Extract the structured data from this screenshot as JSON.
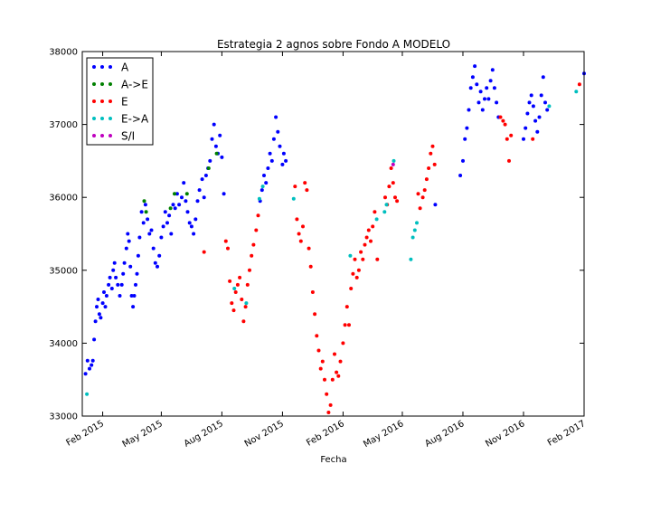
{
  "chart_data": {
    "type": "scatter",
    "title": "Estrategia 2 agnos sobre Fondo A MODELO",
    "xlabel": "Fecha",
    "ylabel": "",
    "xlim": [
      "2015-01-01",
      "2017-02-01"
    ],
    "ylim": [
      33000,
      38000
    ],
    "yticks": [
      33000,
      34000,
      35000,
      36000,
      37000,
      38000
    ],
    "xticks": [
      {
        "date": "2015-02-01",
        "label": "Feb 2015"
      },
      {
        "date": "2015-05-01",
        "label": "May 2015"
      },
      {
        "date": "2015-08-01",
        "label": "Aug 2015"
      },
      {
        "date": "2015-11-01",
        "label": "Nov 2015"
      },
      {
        "date": "2016-02-01",
        "label": "Feb 2016"
      },
      {
        "date": "2016-05-01",
        "label": "May 2016"
      },
      {
        "date": "2016-08-01",
        "label": "Aug 2016"
      },
      {
        "date": "2016-11-01",
        "label": "Nov 2016"
      },
      {
        "date": "2017-02-01",
        "label": "Feb 2017"
      }
    ],
    "grid": false,
    "legend_position": "top-left",
    "series": [
      {
        "name": "A",
        "color": "#0000ff",
        "points": [
          [
            "2015-01-06",
            33580
          ],
          [
            "2015-01-09",
            33760
          ],
          [
            "2015-01-12",
            33650
          ],
          [
            "2015-01-15",
            33700
          ],
          [
            "2015-01-17",
            33760
          ],
          [
            "2015-01-19",
            34050
          ],
          [
            "2015-01-21",
            34300
          ],
          [
            "2015-01-23",
            34500
          ],
          [
            "2015-01-25",
            34600
          ],
          [
            "2015-01-27",
            34400
          ],
          [
            "2015-01-29",
            34350
          ],
          [
            "2015-02-01",
            34550
          ],
          [
            "2015-02-03",
            34700
          ],
          [
            "2015-02-05",
            34500
          ],
          [
            "2015-02-07",
            34650
          ],
          [
            "2015-02-10",
            34800
          ],
          [
            "2015-02-12",
            34900
          ],
          [
            "2015-02-15",
            34750
          ],
          [
            "2015-02-17",
            35000
          ],
          [
            "2015-02-19",
            35100
          ],
          [
            "2015-02-21",
            34900
          ],
          [
            "2015-02-24",
            34800
          ],
          [
            "2015-02-27",
            34650
          ],
          [
            "2015-03-02",
            34800
          ],
          [
            "2015-03-04",
            34950
          ],
          [
            "2015-03-06",
            35100
          ],
          [
            "2015-03-09",
            35300
          ],
          [
            "2015-03-11",
            35500
          ],
          [
            "2015-03-13",
            35400
          ],
          [
            "2015-03-15",
            35050
          ],
          [
            "2015-03-17",
            34650
          ],
          [
            "2015-03-19",
            34500
          ],
          [
            "2015-03-21",
            34650
          ],
          [
            "2015-03-23",
            34800
          ],
          [
            "2015-03-25",
            34950
          ],
          [
            "2015-03-27",
            35200
          ],
          [
            "2015-03-29",
            35450
          ],
          [
            "2015-04-01",
            35800
          ],
          [
            "2015-04-04",
            35650
          ],
          [
            "2015-04-07",
            35900
          ],
          [
            "2015-04-10",
            35700
          ],
          [
            "2015-04-13",
            35500
          ],
          [
            "2015-04-16",
            35550
          ],
          [
            "2015-04-19",
            35300
          ],
          [
            "2015-04-22",
            35100
          ],
          [
            "2015-04-25",
            35050
          ],
          [
            "2015-04-28",
            35200
          ],
          [
            "2015-05-01",
            35450
          ],
          [
            "2015-05-04",
            35600
          ],
          [
            "2015-05-07",
            35800
          ],
          [
            "2015-05-10",
            35650
          ],
          [
            "2015-05-13",
            35750
          ],
          [
            "2015-05-16",
            35500
          ],
          [
            "2015-05-19",
            35900
          ],
          [
            "2015-05-22",
            35850
          ],
          [
            "2015-05-25",
            36050
          ],
          [
            "2015-05-28",
            35900
          ],
          [
            "2015-06-01",
            36000
          ],
          [
            "2015-06-04",
            36200
          ],
          [
            "2015-06-07",
            35950
          ],
          [
            "2015-06-10",
            35800
          ],
          [
            "2015-06-13",
            35650
          ],
          [
            "2015-06-16",
            35600
          ],
          [
            "2015-06-19",
            35500
          ],
          [
            "2015-06-22",
            35700
          ],
          [
            "2015-06-25",
            35950
          ],
          [
            "2015-06-28",
            36100
          ],
          [
            "2015-07-02",
            36250
          ],
          [
            "2015-07-05",
            36000
          ],
          [
            "2015-07-08",
            36300
          ],
          [
            "2015-07-11",
            36400
          ],
          [
            "2015-07-14",
            36500
          ],
          [
            "2015-07-17",
            36800
          ],
          [
            "2015-07-20",
            37000
          ],
          [
            "2015-07-23",
            36700
          ],
          [
            "2015-07-26",
            36600
          ],
          [
            "2015-07-29",
            36850
          ],
          [
            "2015-08-01",
            36550
          ],
          [
            "2015-08-04",
            36050
          ],
          [
            "2015-09-28",
            35950
          ],
          [
            "2015-10-01",
            36100
          ],
          [
            "2015-10-04",
            36300
          ],
          [
            "2015-10-07",
            36200
          ],
          [
            "2015-10-10",
            36400
          ],
          [
            "2015-10-13",
            36600
          ],
          [
            "2015-10-16",
            36500
          ],
          [
            "2015-10-19",
            36800
          ],
          [
            "2015-10-22",
            37100
          ],
          [
            "2015-10-25",
            36900
          ],
          [
            "2015-10-28",
            36700
          ],
          [
            "2015-11-01",
            36450
          ],
          [
            "2015-11-03",
            36600
          ],
          [
            "2015-11-06",
            36500
          ],
          [
            "2016-06-20",
            35900
          ],
          [
            "2016-07-28",
            36300
          ],
          [
            "2016-08-01",
            36500
          ],
          [
            "2016-08-04",
            36800
          ],
          [
            "2016-08-07",
            36950
          ],
          [
            "2016-08-10",
            37200
          ],
          [
            "2016-08-13",
            37500
          ],
          [
            "2016-08-16",
            37650
          ],
          [
            "2016-08-19",
            37800
          ],
          [
            "2016-08-22",
            37550
          ],
          [
            "2016-08-25",
            37300
          ],
          [
            "2016-08-28",
            37450
          ],
          [
            "2016-08-31",
            37200
          ],
          [
            "2016-09-03",
            37350
          ],
          [
            "2016-09-06",
            37500
          ],
          [
            "2016-09-09",
            37350
          ],
          [
            "2016-09-12",
            37600
          ],
          [
            "2016-09-15",
            37750
          ],
          [
            "2016-09-18",
            37500
          ],
          [
            "2016-09-21",
            37300
          ],
          [
            "2016-09-24",
            37100
          ],
          [
            "2016-11-01",
            36800
          ],
          [
            "2016-11-04",
            36950
          ],
          [
            "2016-11-07",
            37150
          ],
          [
            "2016-11-10",
            37300
          ],
          [
            "2016-11-13",
            37400
          ],
          [
            "2016-11-16",
            37250
          ],
          [
            "2016-11-19",
            37050
          ],
          [
            "2016-11-22",
            36900
          ],
          [
            "2016-11-25",
            37100
          ],
          [
            "2016-11-28",
            37400
          ],
          [
            "2016-12-01",
            37650
          ],
          [
            "2016-12-04",
            37300
          ],
          [
            "2016-12-07",
            37200
          ],
          [
            "2017-02-01",
            37700
          ]
        ]
      },
      {
        "name": "A->E",
        "color": "#008000",
        "points": [
          [
            "2015-04-05",
            35950
          ],
          [
            "2015-04-08",
            35800
          ],
          [
            "2015-05-15",
            35850
          ],
          [
            "2015-05-21",
            36050
          ],
          [
            "2015-06-09",
            36050
          ],
          [
            "2015-07-12",
            36400
          ],
          [
            "2015-07-24",
            36600
          ]
        ]
      },
      {
        "name": "E",
        "color": "#ff0000",
        "points": [
          [
            "2015-07-05",
            35250
          ],
          [
            "2015-08-07",
            35400
          ],
          [
            "2015-08-10",
            35300
          ],
          [
            "2015-08-13",
            34850
          ],
          [
            "2015-08-16",
            34550
          ],
          [
            "2015-08-19",
            34450
          ],
          [
            "2015-08-22",
            34700
          ],
          [
            "2015-08-25",
            34800
          ],
          [
            "2015-08-28",
            34900
          ],
          [
            "2015-08-31",
            34600
          ],
          [
            "2015-09-03",
            34300
          ],
          [
            "2015-09-06",
            34500
          ],
          [
            "2015-09-09",
            34800
          ],
          [
            "2015-09-12",
            35000
          ],
          [
            "2015-09-15",
            35200
          ],
          [
            "2015-09-18",
            35350
          ],
          [
            "2015-09-22",
            35550
          ],
          [
            "2015-09-25",
            35750
          ],
          [
            "2015-11-20",
            36150
          ],
          [
            "2015-11-23",
            35700
          ],
          [
            "2015-11-26",
            35500
          ],
          [
            "2015-11-29",
            35400
          ],
          [
            "2015-12-02",
            35600
          ],
          [
            "2015-12-05",
            36200
          ],
          [
            "2015-12-08",
            36100
          ],
          [
            "2015-12-11",
            35300
          ],
          [
            "2015-12-14",
            35050
          ],
          [
            "2015-12-17",
            34700
          ],
          [
            "2015-12-20",
            34400
          ],
          [
            "2015-12-23",
            34100
          ],
          [
            "2015-12-26",
            33900
          ],
          [
            "2015-12-29",
            33650
          ],
          [
            "2016-01-01",
            33750
          ],
          [
            "2016-01-04",
            33500
          ],
          [
            "2016-01-07",
            33300
          ],
          [
            "2016-01-10",
            33050
          ],
          [
            "2016-01-13",
            33150
          ],
          [
            "2016-01-16",
            33500
          ],
          [
            "2016-01-19",
            33850
          ],
          [
            "2016-01-22",
            33600
          ],
          [
            "2016-01-25",
            33550
          ],
          [
            "2016-01-28",
            33750
          ],
          [
            "2016-02-01",
            34000
          ],
          [
            "2016-02-04",
            34250
          ],
          [
            "2016-02-07",
            34500
          ],
          [
            "2016-02-10",
            34250
          ],
          [
            "2016-02-13",
            34750
          ],
          [
            "2016-02-16",
            34950
          ],
          [
            "2016-02-19",
            35150
          ],
          [
            "2016-02-22",
            34900
          ],
          [
            "2016-02-25",
            35000
          ],
          [
            "2016-02-28",
            35250
          ],
          [
            "2016-03-02",
            35150
          ],
          [
            "2016-03-05",
            35350
          ],
          [
            "2016-03-08",
            35450
          ],
          [
            "2016-03-11",
            35550
          ],
          [
            "2016-03-14",
            35400
          ],
          [
            "2016-03-17",
            35600
          ],
          [
            "2016-03-20",
            35800
          ],
          [
            "2016-03-24",
            35150
          ],
          [
            "2016-04-05",
            36000
          ],
          [
            "2016-04-08",
            35900
          ],
          [
            "2016-04-11",
            36150
          ],
          [
            "2016-04-14",
            36400
          ],
          [
            "2016-04-17",
            36200
          ],
          [
            "2016-04-20",
            36000
          ],
          [
            "2016-04-23",
            35950
          ],
          [
            "2016-05-25",
            36050
          ],
          [
            "2016-05-28",
            35850
          ],
          [
            "2016-06-01",
            36000
          ],
          [
            "2016-06-04",
            36100
          ],
          [
            "2016-06-07",
            36250
          ],
          [
            "2016-06-10",
            36400
          ],
          [
            "2016-06-13",
            36600
          ],
          [
            "2016-06-16",
            36700
          ],
          [
            "2016-06-19",
            36450
          ],
          [
            "2016-09-27",
            37100
          ],
          [
            "2016-10-01",
            37050
          ],
          [
            "2016-10-04",
            37000
          ],
          [
            "2016-10-07",
            36800
          ],
          [
            "2016-10-10",
            36500
          ],
          [
            "2016-10-13",
            36850
          ],
          [
            "2016-11-15",
            36800
          ],
          [
            "2017-01-25",
            37550
          ]
        ]
      },
      {
        "name": "E->A",
        "color": "#00bfbf",
        "points": [
          [
            "2015-01-08",
            33300
          ],
          [
            "2015-08-20",
            34750
          ],
          [
            "2015-09-07",
            34550
          ],
          [
            "2015-09-27",
            35980
          ],
          [
            "2015-10-02",
            36150
          ],
          [
            "2015-11-18",
            35980
          ],
          [
            "2016-02-12",
            35200
          ],
          [
            "2016-03-23",
            35700
          ],
          [
            "2016-04-04",
            35800
          ],
          [
            "2016-04-07",
            35900
          ],
          [
            "2016-04-18",
            36500
          ],
          [
            "2016-05-14",
            35150
          ],
          [
            "2016-05-17",
            35450
          ],
          [
            "2016-05-20",
            35550
          ],
          [
            "2016-05-23",
            35650
          ],
          [
            "2016-12-10",
            37250
          ],
          [
            "2017-01-20",
            37450
          ]
        ]
      },
      {
        "name": "S/I",
        "color": "#bf00bf",
        "points": [
          [
            "2016-04-17",
            36450
          ]
        ]
      }
    ]
  }
}
